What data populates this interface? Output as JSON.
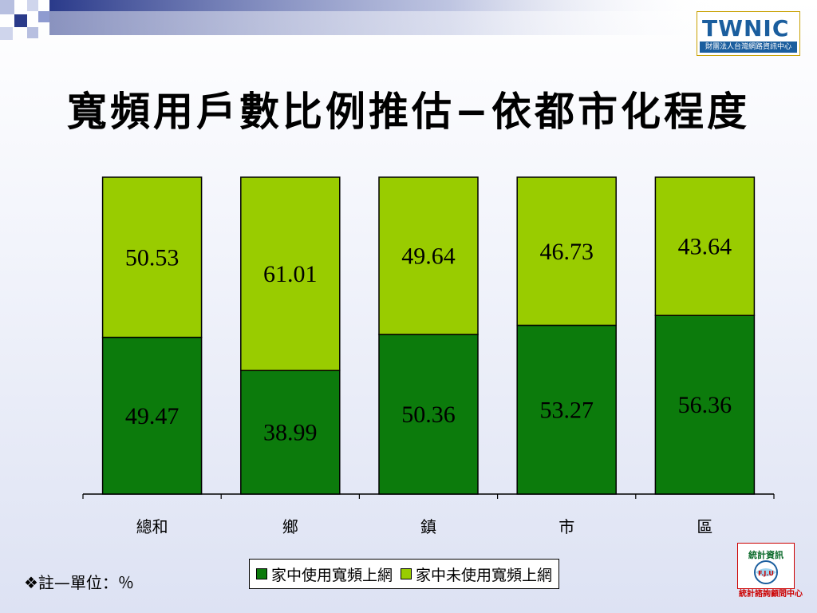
{
  "title": "寬頻用戶數比例推估−依都市化程度",
  "logo_top_right": {
    "word": "TWNIC",
    "subtitle": "財團法人台灣網路資訊中心"
  },
  "logo_bottom_right": {
    "emblem_text": "統計資訊E F.J.U",
    "caption": "統計諮詢顧問中心"
  },
  "note": "❖註—單位：％",
  "colors": {
    "series1": "#0c7b0c",
    "series2": "#99cc00"
  },
  "chart_data": {
    "type": "bar",
    "stacked": true,
    "categories": [
      "總和",
      "鄉",
      "鎮",
      "市",
      "區"
    ],
    "series": [
      {
        "name": "家中使用寬頻上網",
        "values": [
          49.47,
          38.99,
          50.36,
          53.27,
          56.36
        ]
      },
      {
        "name": "家中未使用寬頻上網",
        "values": [
          50.53,
          61.01,
          49.64,
          46.73,
          43.64
        ]
      }
    ],
    "ylim": [
      0,
      100
    ],
    "grid": false,
    "legend_position": "bottom"
  }
}
